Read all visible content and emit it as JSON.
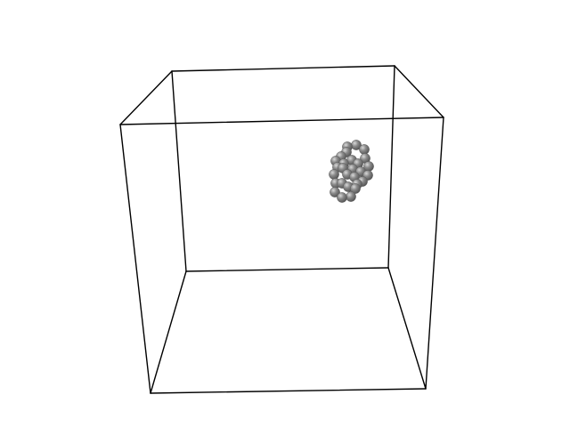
{
  "scene": {
    "background_color": "#ffffff",
    "box_edge_color": "#000000",
    "bead_color": "#808080",
    "bead_highlight_color": "#d9d9d9",
    "bead_shadow_color": "#555555"
  }
}
